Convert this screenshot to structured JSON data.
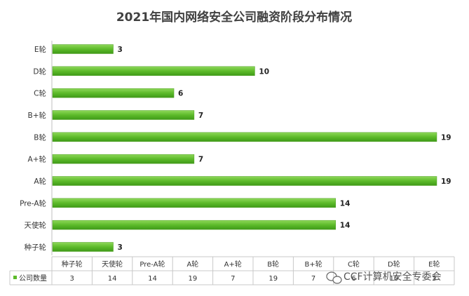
{
  "chart_data": {
    "type": "bar",
    "orientation": "horizontal",
    "title": "2021年国内网络安全公司融资阶段分布情况",
    "categories": [
      "种子轮",
      "天使轮",
      "Pre-A轮",
      "A轮",
      "A+轮",
      "B轮",
      "B+轮",
      "C轮",
      "D轮",
      "E轮"
    ],
    "series": [
      {
        "name": "公司数量",
        "values": [
          3,
          14,
          14,
          19,
          7,
          19,
          7,
          6,
          10,
          3
        ]
      }
    ],
    "xlim": [
      0,
      19
    ],
    "bar_color": "#5dbb2a",
    "grid": false,
    "legend": "data-table-left",
    "data_table": true
  },
  "watermark": "CCF计算机安全专委会"
}
